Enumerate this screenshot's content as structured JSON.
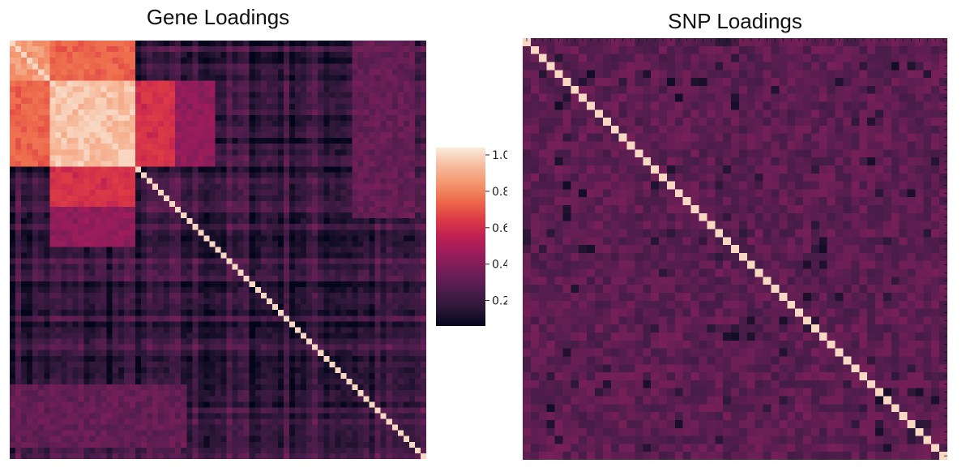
{
  "chart_data": [
    {
      "type": "heatmap",
      "title": "Gene Loadings",
      "n": 73,
      "diagonal_value": 1.0,
      "blocks": [
        {
          "rows": [
            0,
            6
          ],
          "cols": [
            0,
            6
          ],
          "value": 0.86
        },
        {
          "rows": [
            7,
            21
          ],
          "cols": [
            7,
            21
          ],
          "value": 0.95
        },
        {
          "rows": [
            0,
            6
          ],
          "cols": [
            7,
            21
          ],
          "value": 0.72
        },
        {
          "rows": [
            7,
            21
          ],
          "cols": [
            0,
            6
          ],
          "value": 0.72
        },
        {
          "rows": [
            7,
            21
          ],
          "cols": [
            22,
            28
          ],
          "value": 0.6
        },
        {
          "rows": [
            22,
            28
          ],
          "cols": [
            7,
            21
          ],
          "value": 0.6
        },
        {
          "rows": [
            22,
            35
          ],
          "cols": [
            7,
            21
          ],
          "value": 0.42
        },
        {
          "rows": [
            7,
            21
          ],
          "cols": [
            22,
            35
          ],
          "value": 0.42
        },
        {
          "rows": [
            60,
            70
          ],
          "cols": [
            0,
            30
          ],
          "value": 0.32
        }
      ],
      "background_value": 0.18
    },
    {
      "type": "heatmap",
      "title": "SNP Loadings",
      "n": 53,
      "diagonal_value": 1.0,
      "background_value": 0.3,
      "background_range": [
        0.1,
        0.4
      ]
    }
  ],
  "colorbar": {
    "ticks": [
      "1.0",
      "0.8",
      "0.6",
      "0.4",
      "0.2"
    ],
    "tick_values": [
      1.0,
      0.8,
      0.6,
      0.4,
      0.2
    ],
    "vmin": 0.06,
    "vmax": 1.04,
    "colors": [
      "#03051a",
      "#2c1738",
      "#4c1d4b",
      "#711f57",
      "#971c5b",
      "#be2053",
      "#dd3b45",
      "#ed6a4b",
      "#f3966f",
      "#f6bc9e",
      "#faebdd"
    ]
  }
}
